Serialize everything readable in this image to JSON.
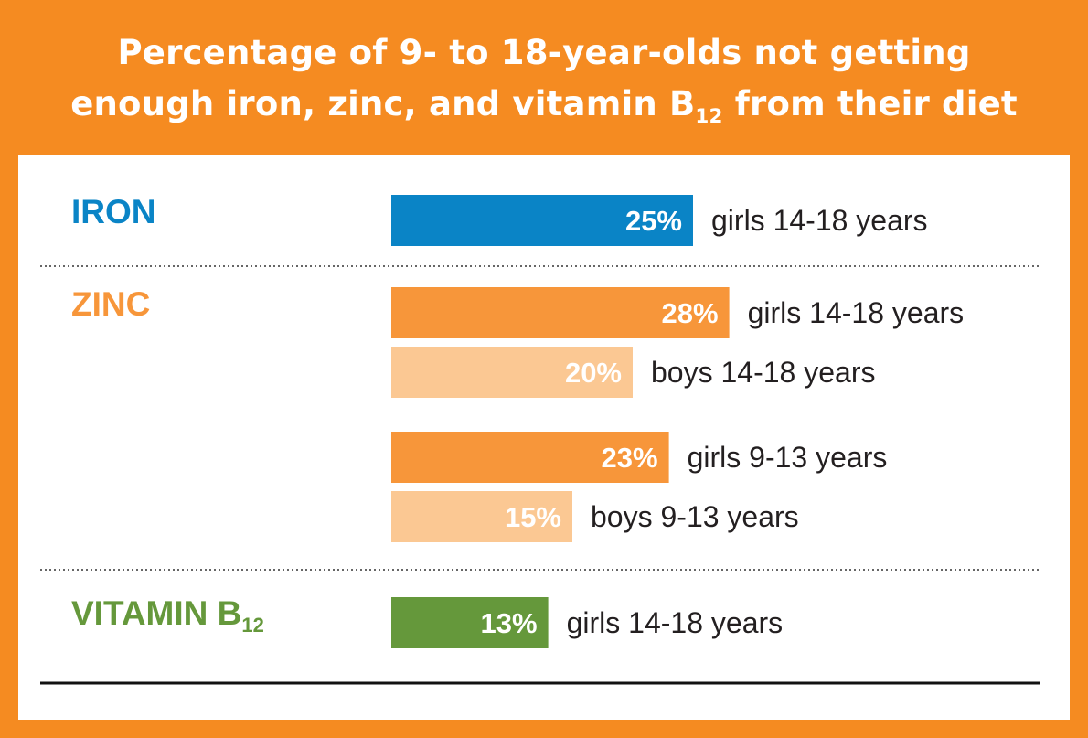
{
  "title": {
    "line1": "Percentage of 9- to 18-year-olds not getting",
    "line2_main": "enough iron, zinc, and vitamin B",
    "line2_sub": "12",
    "line2_end": " from their diet"
  },
  "colors": {
    "background": "#f58b21",
    "iron": "#0a84c6",
    "zinc_dark": "#f7963a",
    "zinc_light": "#fbc893",
    "vitamin_b12": "#65983b"
  },
  "categories": [
    {
      "name": "IRON",
      "sub": "",
      "color": "#0a84c6"
    },
    {
      "name": "ZINC",
      "sub": "",
      "color": "#f7963a"
    },
    {
      "name": "VITAMIN B",
      "sub": "12",
      "color": "#65983b"
    }
  ],
  "chart_data": {
    "type": "bar",
    "title": "Percentage of 9- to 18-year-olds not getting enough iron, zinc, and vitamin B12 from their diet",
    "orientation": "horizontal",
    "unit": "%",
    "xlim": [
      0,
      28
    ],
    "grid": false,
    "bars": [
      {
        "category": "IRON",
        "label": "girls 14-18 years",
        "value": 25,
        "value_label": "25%",
        "color": "#0a84c6"
      },
      {
        "category": "ZINC",
        "label": "girls 14-18 years",
        "value": 28,
        "value_label": "28%",
        "color": "#f7963a"
      },
      {
        "category": "ZINC",
        "label": "boys 14-18 years",
        "value": 20,
        "value_label": "20%",
        "color": "#fbc893"
      },
      {
        "category": "ZINC",
        "label": "girls 9-13 years",
        "value": 23,
        "value_label": "23%",
        "color": "#f7963a"
      },
      {
        "category": "ZINC",
        "label": "boys 9-13 years",
        "value": 15,
        "value_label": "15%",
        "color": "#fbc893"
      },
      {
        "category": "VITAMIN B12",
        "label": "girls 14-18 years",
        "value": 13,
        "value_label": "13%",
        "color": "#65983b"
      }
    ]
  }
}
